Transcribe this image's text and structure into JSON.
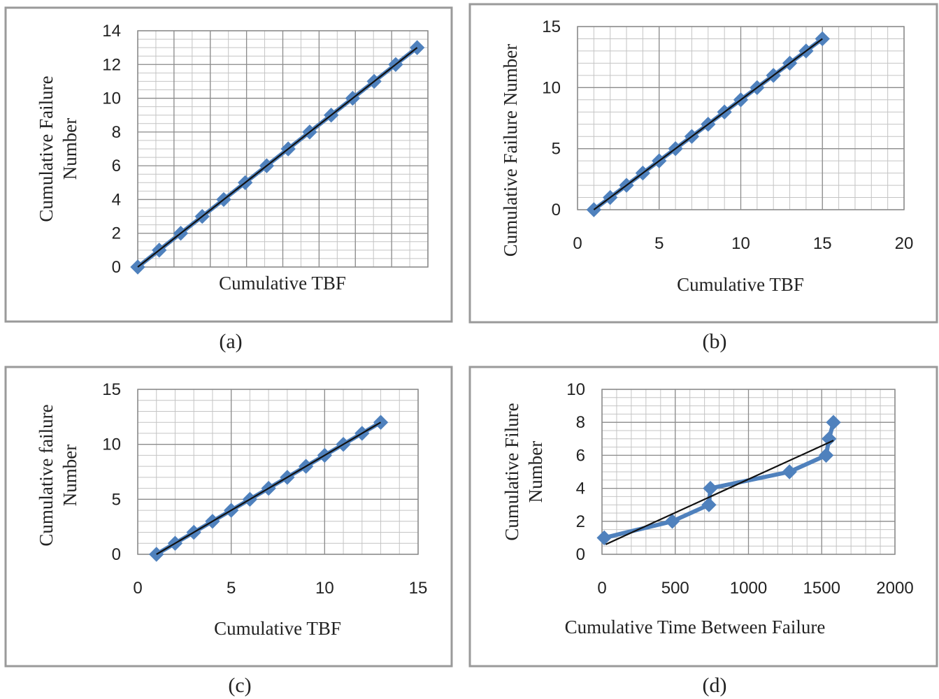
{
  "chart_data": [
    {
      "id": "a",
      "caption": "(a)",
      "type": "scatter",
      "xlabel": "Cumulative TBF",
      "ylabel": [
        "Cumulative Failure",
        "Number"
      ],
      "xlim": [
        1,
        14.5
      ],
      "ylim": [
        0,
        14
      ],
      "y_ticks": [
        0,
        2,
        4,
        6,
        8,
        10,
        12,
        14
      ],
      "x_ticks": [],
      "x_tick_labels_visible": false,
      "grid": true,
      "series": [
        {
          "x": [
            1,
            2,
            3,
            4,
            5,
            6,
            7,
            8,
            9,
            10,
            11,
            12,
            13,
            14
          ],
          "y": [
            0,
            1,
            2,
            3,
            4,
            5,
            6,
            7,
            8,
            9,
            10,
            11,
            12,
            13
          ],
          "marker": "diamond",
          "connected": true,
          "color": "#4f81bd"
        }
      ],
      "trendline": {
        "x": [
          1,
          14
        ],
        "y": [
          0,
          13
        ],
        "color": "#111111"
      }
    },
    {
      "id": "b",
      "caption": "(b)",
      "type": "scatter",
      "xlabel": "Cumulative TBF",
      "ylabel": [
        "Cumulative Failure Number"
      ],
      "xlim": [
        0,
        20
      ],
      "ylim": [
        0,
        15
      ],
      "y_ticks": [
        0,
        5,
        10,
        15
      ],
      "x_ticks": [
        0,
        5,
        10,
        15,
        20
      ],
      "x_tick_labels_visible": true,
      "grid": true,
      "series": [
        {
          "x": [
            1,
            2,
            3,
            4,
            5,
            6,
            7,
            8,
            9,
            10,
            11,
            12,
            13,
            14,
            15
          ],
          "y": [
            0,
            1,
            2,
            3,
            4,
            5,
            6,
            7,
            8,
            9,
            10,
            11,
            12,
            13,
            14
          ],
          "marker": "diamond",
          "connected": true,
          "color": "#4f81bd"
        }
      ],
      "trendline": {
        "x": [
          1,
          15
        ],
        "y": [
          0,
          14
        ],
        "color": "#111111"
      }
    },
    {
      "id": "c",
      "caption": "(c)",
      "type": "scatter",
      "xlabel": "Cumulative  TBF",
      "ylabel": [
        "Cumulative failure",
        "Number"
      ],
      "xlim": [
        0,
        15
      ],
      "ylim": [
        0,
        15
      ],
      "y_ticks": [
        0,
        5,
        10,
        15
      ],
      "x_ticks": [
        0,
        5,
        10,
        15
      ],
      "x_tick_labels_visible": true,
      "grid": true,
      "series": [
        {
          "x": [
            1,
            2,
            3,
            4,
            5,
            6,
            7,
            8,
            9,
            10,
            11,
            12,
            13
          ],
          "y": [
            0,
            1,
            2,
            3,
            4,
            5,
            6,
            7,
            8,
            9,
            10,
            11,
            12
          ],
          "marker": "diamond",
          "connected": true,
          "color": "#4f81bd"
        }
      ],
      "trendline": {
        "x": [
          1,
          13
        ],
        "y": [
          0,
          12
        ],
        "color": "#111111"
      }
    },
    {
      "id": "d",
      "caption": "(d)",
      "type": "scatter",
      "xlabel": "Cumulative Time Between Failure",
      "ylabel": [
        "Cumulative Filure",
        "Number"
      ],
      "xlim": [
        0,
        2000
      ],
      "ylim": [
        0,
        10
      ],
      "y_ticks": [
        0,
        2,
        4,
        6,
        8,
        10
      ],
      "x_ticks": [
        0,
        500,
        1000,
        1500,
        2000
      ],
      "x_tick_labels_visible": true,
      "grid": true,
      "series": [
        {
          "x": [
            15,
            480,
            730,
            740,
            1280,
            1530,
            1550,
            1580
          ],
          "y": [
            1,
            2,
            3,
            4,
            5,
            6,
            7,
            8
          ],
          "marker": "diamond",
          "connected": true,
          "color": "#4f81bd"
        }
      ],
      "trendline": {
        "x": [
          25,
          1580
        ],
        "y": [
          0.6,
          6.9
        ],
        "color": "#111111"
      }
    }
  ]
}
